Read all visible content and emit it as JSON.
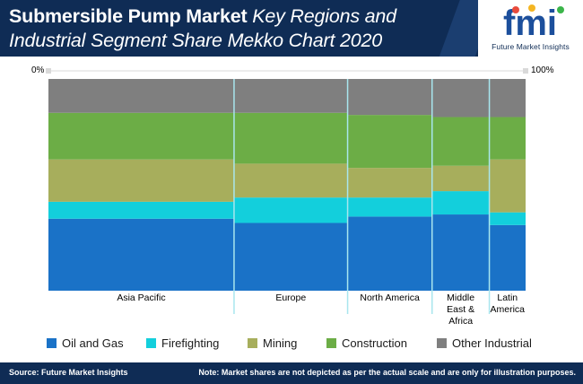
{
  "header": {
    "title_bold": "Submersible Pump Market",
    "title_italic_1": " Key Regions and",
    "title_line2": "Industrial Segment Share Mekko Chart 2020"
  },
  "logo": {
    "mark": "fmi",
    "text": "Future Market Insights"
  },
  "axis": {
    "left_label": "0%",
    "right_label": "100%"
  },
  "colors": {
    "Oil and Gas": "#1a72c7",
    "Firefighting": "#13cfdc",
    "Mining": "#a7ae5c",
    "Construction": "#6cad46",
    "Other Industrial": "#7f7f7f",
    "divider": "#a8e6ee",
    "header": "#0f2c55"
  },
  "footer": {
    "source": "Source: Future Market Insights",
    "note": "Note: Market shares are not depicted as per the actual scale and are only for illustration purposes."
  },
  "chart_data": {
    "type": "mekko",
    "title": "Submersible Pump Market Key Regions and Industrial Segment Share Mekko Chart 2020",
    "x_axis_range": [
      "0%",
      "100%"
    ],
    "categories": [
      "Asia Pacific",
      "Europe",
      "North America",
      "Middle East & Africa",
      "Latin America"
    ],
    "category_label_lines": [
      [
        "Asia Pacific"
      ],
      [
        "Europe"
      ],
      [
        "North America"
      ],
      [
        "Middle",
        "East &",
        "Africa"
      ],
      [
        "Latin",
        "America"
      ]
    ],
    "widths": [
      38.9,
      23.8,
      17.7,
      12.0,
      7.6
    ],
    "series_order_bottom_to_top": [
      "Oil and Gas",
      "Firefighting",
      "Mining",
      "Construction",
      "Other Industrial"
    ],
    "series": [
      {
        "name": "Oil and Gas",
        "values": [
          34,
          32,
          35,
          36,
          31
        ]
      },
      {
        "name": "Firefighting",
        "values": [
          8,
          12,
          9,
          11,
          6
        ]
      },
      {
        "name": "Mining",
        "values": [
          20,
          16,
          14,
          12,
          25
        ]
      },
      {
        "name": "Construction",
        "values": [
          22,
          24,
          25,
          23,
          20
        ]
      },
      {
        "name": "Other Industrial",
        "values": [
          16,
          16,
          17,
          18,
          18
        ]
      }
    ],
    "legend": [
      "Oil and Gas",
      "Firefighting",
      "Mining",
      "Construction",
      "Other Industrial"
    ],
    "legend_position": "bottom"
  }
}
